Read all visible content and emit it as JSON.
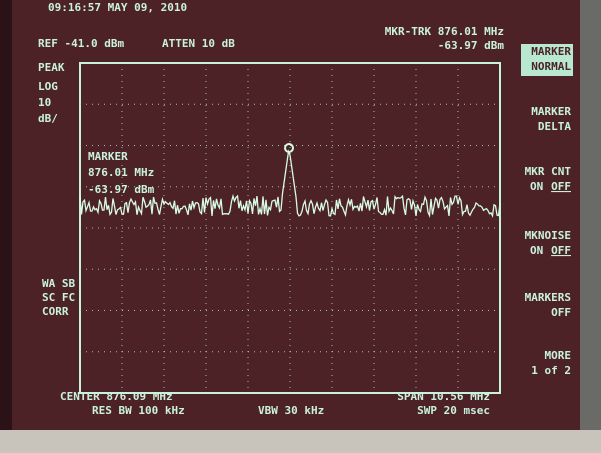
{
  "header": {
    "timestamp": "09:16:57 MAY 09, 2010",
    "ref": "REF -41.0 dBm",
    "atten": "ATTEN 10 dB",
    "marker_track": "MKR-TRK 876.01 MHz",
    "marker_level": "-63.97 dBm"
  },
  "scale": [
    "PEAK",
    "LOG",
    "10",
    "dB/"
  ],
  "marker": [
    "MARKER",
    "876.01 MHz",
    "-63.97 dBm"
  ],
  "corrections": [
    "WA SB",
    "SC FC",
    "CORR"
  ],
  "softkeys": [
    {
      "lines": [
        "MARKER",
        "NORMAL"
      ]
    },
    {
      "lines": [
        "MARKER",
        "DELTA"
      ]
    },
    {
      "lines": [
        "MKR CNT"
      ],
      "on": "ON",
      "off": "OFF"
    },
    {
      "lines": [
        "MKNOISE"
      ],
      "on": "ON",
      "off": "OFF"
    },
    {
      "lines": [
        "MARKERS",
        "OFF"
      ]
    },
    {
      "lines": [
        "MORE",
        "1 of 2"
      ]
    }
  ],
  "footer": {
    "center": "CENTER 876.09 MHz",
    "span": "SPAN 10.56 MHz",
    "res_bw": "RES BW 100 kHz",
    "vbw": "VBW 30 kHz",
    "sweep": "SWP 20 msec"
  }
}
